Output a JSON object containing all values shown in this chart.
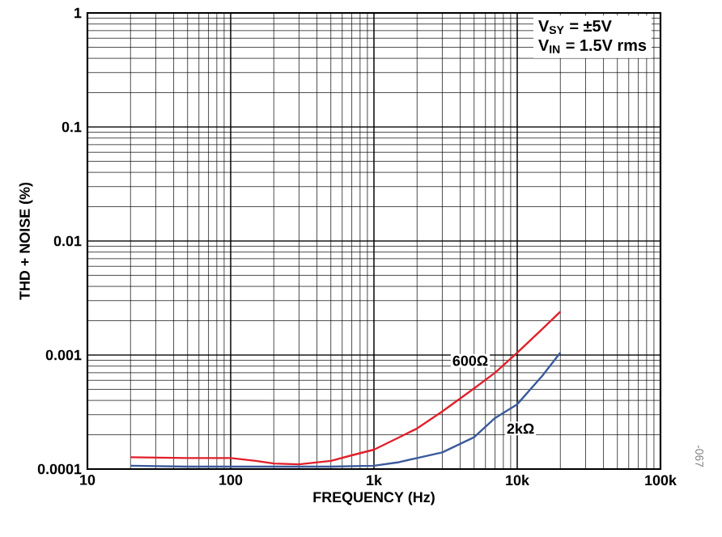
{
  "chart_data": {
    "type": "line",
    "xlabel": "FREQUENCY (Hz)",
    "ylabel": "THD + NOISE (%)",
    "log": "xy",
    "grid": true,
    "xlim": [
      10,
      100000
    ],
    "ylim": [
      0.0001,
      1
    ],
    "xticks": [
      10,
      100,
      {
        "value": 1000,
        "label": "1k"
      },
      {
        "value": 10000,
        "label": "10k"
      },
      {
        "value": 100000,
        "label": "100k"
      }
    ],
    "yticks": [
      0.0001,
      0.001,
      0.01,
      0.1,
      1
    ],
    "annotations": [
      "V$_{SY}$ = ±5V",
      "V$_{IN}$ = 1.5V rms",
      "-067"
    ],
    "series": [
      {
        "name": "600Ω",
        "color": "#e0202a",
        "x": [
          20,
          50,
          100,
          150,
          200,
          300,
          500,
          700,
          1000,
          1500,
          2000,
          3000,
          5000,
          7000,
          10000,
          15000,
          20000
        ],
        "values": [
          0.000127,
          0.000125,
          0.000125,
          0.000118,
          0.000112,
          0.00011,
          0.000118,
          0.000132,
          0.000148,
          0.00019,
          0.000227,
          0.00032,
          0.00051,
          0.0007,
          0.00105,
          0.0017,
          0.0024
        ]
      },
      {
        "name": "2kΩ",
        "color": "#3a5a9a",
        "x": [
          20,
          50,
          100,
          200,
          300,
          500,
          1000,
          1500,
          2000,
          3000,
          5000,
          7000,
          10000,
          15000,
          20000
        ],
        "values": [
          0.000107,
          0.000105,
          0.000105,
          0.000105,
          0.000105,
          0.000105,
          0.000107,
          0.000115,
          0.000125,
          0.00014,
          0.00019,
          0.00028,
          0.00037,
          0.00066,
          0.00105
        ]
      }
    ]
  }
}
